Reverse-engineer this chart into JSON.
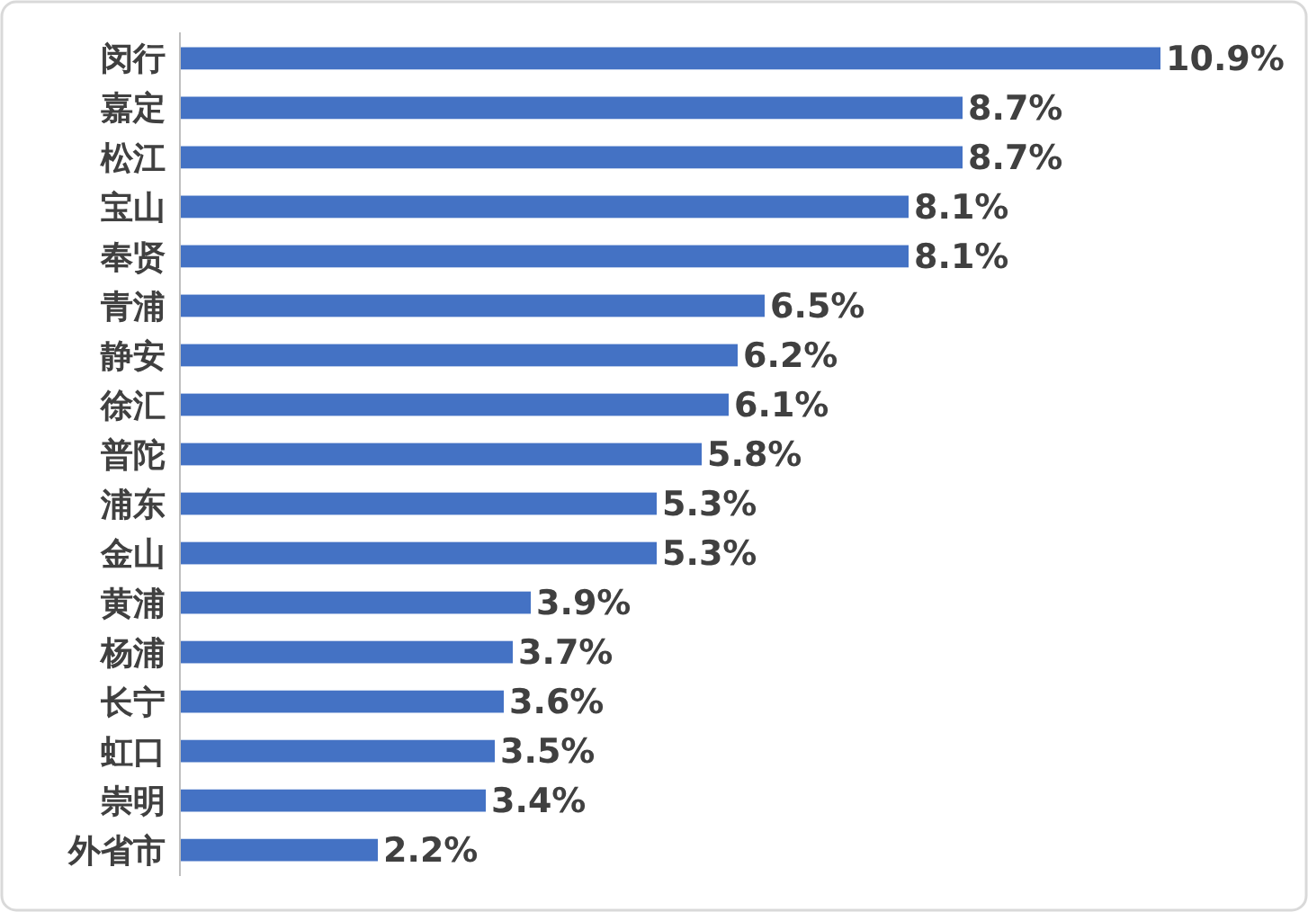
{
  "chart_data": {
    "type": "bar",
    "orientation": "horizontal",
    "categories": [
      "闵行",
      "嘉定",
      "松江",
      "宝山",
      "奉贤",
      "青浦",
      "静安",
      "徐汇",
      "普陀",
      "浦东",
      "金山",
      "黄浦",
      "杨浦",
      "长宁",
      "虹口",
      "崇明",
      "外省市"
    ],
    "values": [
      10.9,
      8.7,
      8.7,
      8.1,
      8.1,
      6.5,
      6.2,
      6.1,
      5.8,
      5.3,
      5.3,
      3.9,
      3.7,
      3.6,
      3.5,
      3.4,
      2.2
    ],
    "value_labels": [
      "10.9%",
      "8.7%",
      "8.7%",
      "8.1%",
      "8.1%",
      "6.5%",
      "6.2%",
      "6.1%",
      "5.8%",
      "5.3%",
      "5.3%",
      "3.9%",
      "3.7%",
      "3.6%",
      "3.5%",
      "3.4%",
      "2.2%"
    ],
    "color": "#4472c4",
    "tick_labels": "y"
  }
}
